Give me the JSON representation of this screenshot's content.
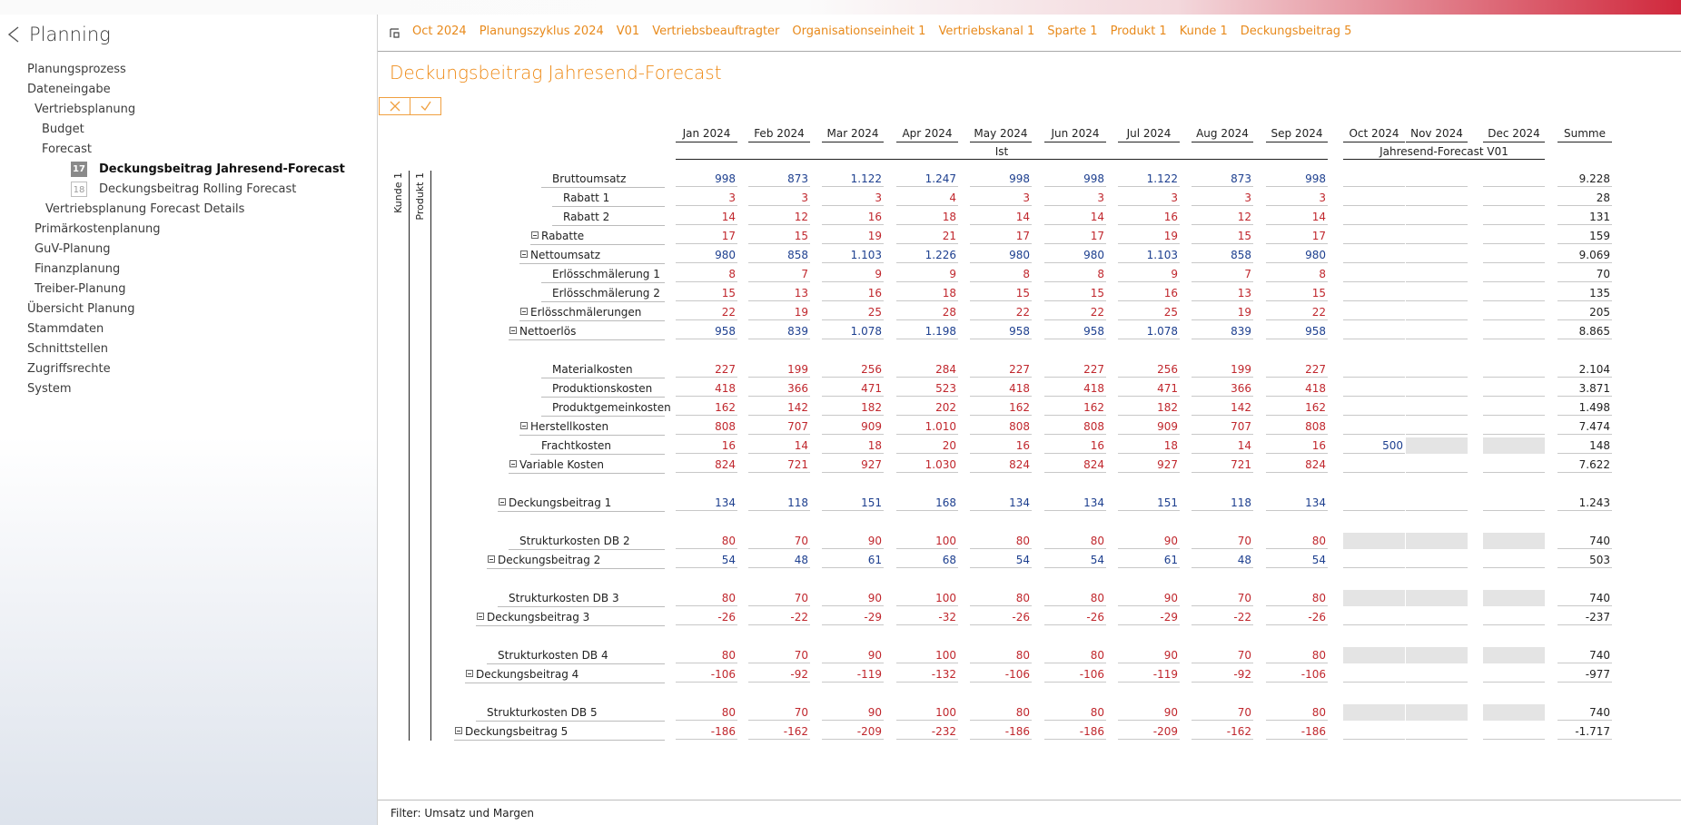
{
  "app": {
    "title": "Planning"
  },
  "nav": [
    {
      "label": "Planungsprozess",
      "indent": 0,
      "badge": null,
      "bold": false
    },
    {
      "label": "Dateneingabe",
      "indent": 0,
      "badge": null,
      "bold": false
    },
    {
      "label": "Vertriebsplanung",
      "indent": 1,
      "badge": null,
      "bold": false
    },
    {
      "label": "Budget",
      "indent": 2,
      "badge": null,
      "bold": false
    },
    {
      "label": "Forecast",
      "indent": 2,
      "badge": null,
      "bold": false
    },
    {
      "label": "Deckungsbeitrag Jahresend-Forecast",
      "indent": 3,
      "badge": "17",
      "bold": true,
      "active": true
    },
    {
      "label": "Deckungsbeitrag Rolling Forecast",
      "indent": 3,
      "badge": "18",
      "bold": false
    },
    {
      "label": "Vertriebsplanung Forecast Details",
      "indent": 2.5,
      "badge": null,
      "bold": false
    },
    {
      "label": "Primärkostenplanung",
      "indent": 1,
      "badge": null,
      "bold": false
    },
    {
      "label": "GuV-Planung",
      "indent": 1,
      "badge": null,
      "bold": false
    },
    {
      "label": "Finanzplanung",
      "indent": 1,
      "badge": null,
      "bold": false
    },
    {
      "label": "Treiber-Planung",
      "indent": 1,
      "badge": null,
      "bold": false
    },
    {
      "label": "Übersicht Planung",
      "indent": 0,
      "badge": null,
      "bold": false
    },
    {
      "label": "Stammdaten",
      "indent": 0,
      "badge": null,
      "bold": false
    },
    {
      "label": "Schnittstellen",
      "indent": 0,
      "badge": null,
      "bold": false
    },
    {
      "label": "Zugriffsrechte",
      "indent": 0,
      "badge": null,
      "bold": false
    },
    {
      "label": "System",
      "indent": 0,
      "badge": null,
      "bold": false
    }
  ],
  "breadcrumbs": [
    "Oct 2024",
    "Planungszyklus 2024",
    "V01",
    "Vertriebsbeauftragter",
    "Organisationseinheit 1",
    "Vertriebskanal 1",
    "Sparte 1",
    "Produkt 1",
    "Kunde 1",
    "Deckungsbeitrag 5"
  ],
  "page_title": "Deckungsbeitrag Jahresend-Forecast",
  "columns": [
    "Jan 2024",
    "Feb 2024",
    "Mar 2024",
    "Apr 2024",
    "May 2024",
    "Jun 2024",
    "Jul 2024",
    "Aug 2024",
    "Sep 2024",
    "Oct 2024",
    "Nov 2024",
    "Dec 2024",
    "Summe"
  ],
  "column_groups": [
    {
      "label": "Ist",
      "span": 9
    },
    {
      "label": "Jahresend-Forecast V01",
      "span": 3
    }
  ],
  "dimensions": {
    "outer": "Kunde 1",
    "inner": "Produkt 1"
  },
  "colors": {
    "accent": "#ee8a16",
    "negative": "#c0272d",
    "positive": "#1d3f8f"
  },
  "rows": [
    {
      "label": "Bruttoumsatz",
      "indent": 9,
      "expander": false,
      "color": "blue",
      "values": [
        "998",
        "873",
        "1.122",
        "1.247",
        "998",
        "998",
        "1.122",
        "873",
        "998"
      ],
      "forecast": [
        "",
        "",
        ""
      ],
      "total": "9.228"
    },
    {
      "label": "Rabatt 1",
      "indent": 10,
      "expander": false,
      "color": "red",
      "values": [
        "3",
        "3",
        "3",
        "4",
        "3",
        "3",
        "3",
        "3",
        "3"
      ],
      "forecast": [
        "",
        "",
        ""
      ],
      "total": "28"
    },
    {
      "label": "Rabatt 2",
      "indent": 10,
      "expander": false,
      "color": "red",
      "values": [
        "14",
        "12",
        "16",
        "18",
        "14",
        "14",
        "16",
        "12",
        "14"
      ],
      "forecast": [
        "",
        "",
        ""
      ],
      "total": "131"
    },
    {
      "label": "Rabatte",
      "indent": 9,
      "expander": true,
      "color": "red",
      "values": [
        "17",
        "15",
        "19",
        "21",
        "17",
        "17",
        "19",
        "15",
        "17"
      ],
      "forecast": [
        "",
        "",
        ""
      ],
      "total": "159"
    },
    {
      "label": "Nettoumsatz",
      "indent": 8,
      "expander": true,
      "color": "blue",
      "values": [
        "980",
        "858",
        "1.103",
        "1.226",
        "980",
        "980",
        "1.103",
        "858",
        "980"
      ],
      "forecast": [
        "",
        "",
        ""
      ],
      "total": "9.069"
    },
    {
      "label": "Erlösschmälerung 1",
      "indent": 9,
      "expander": false,
      "color": "red",
      "values": [
        "8",
        "7",
        "9",
        "9",
        "8",
        "8",
        "9",
        "7",
        "8"
      ],
      "forecast": [
        "",
        "",
        ""
      ],
      "total": "70"
    },
    {
      "label": "Erlösschmälerung 2",
      "indent": 9,
      "expander": false,
      "color": "red",
      "values": [
        "15",
        "13",
        "16",
        "18",
        "15",
        "15",
        "16",
        "13",
        "15"
      ],
      "forecast": [
        "",
        "",
        ""
      ],
      "total": "135"
    },
    {
      "label": "Erlösschmälerungen",
      "indent": 8,
      "expander": true,
      "color": "red",
      "values": [
        "22",
        "19",
        "25",
        "28",
        "22",
        "22",
        "25",
        "19",
        "22"
      ],
      "forecast": [
        "",
        "",
        ""
      ],
      "total": "205"
    },
    {
      "label": "Nettoerlös",
      "indent": 7,
      "expander": true,
      "color": "blue",
      "values": [
        "958",
        "839",
        "1.078",
        "1.198",
        "958",
        "958",
        "1.078",
        "839",
        "958"
      ],
      "forecast": [
        "",
        "",
        ""
      ],
      "total": "8.865"
    },
    {
      "spacer": true
    },
    {
      "label": "Materialkosten",
      "indent": 9,
      "expander": false,
      "color": "red",
      "values": [
        "227",
        "199",
        "256",
        "284",
        "227",
        "227",
        "256",
        "199",
        "227"
      ],
      "forecast": [
        "",
        "",
        ""
      ],
      "total": "2.104"
    },
    {
      "label": "Produktionskosten",
      "indent": 9,
      "expander": false,
      "color": "red",
      "values": [
        "418",
        "366",
        "471",
        "523",
        "418",
        "418",
        "471",
        "366",
        "418"
      ],
      "forecast": [
        "",
        "",
        ""
      ],
      "total": "3.871"
    },
    {
      "label": "Produktgemeinkosten",
      "indent": 9,
      "expander": false,
      "color": "red",
      "values": [
        "162",
        "142",
        "182",
        "202",
        "162",
        "162",
        "182",
        "142",
        "162"
      ],
      "forecast": [
        "",
        "",
        ""
      ],
      "total": "1.498"
    },
    {
      "label": "Herstellkosten",
      "indent": 8,
      "expander": true,
      "color": "red",
      "values": [
        "808",
        "707",
        "909",
        "1.010",
        "808",
        "808",
        "909",
        "707",
        "808"
      ],
      "forecast": [
        "",
        "",
        ""
      ],
      "total": "7.474"
    },
    {
      "label": "Frachtkosten",
      "indent": 8,
      "expander": false,
      "color": "red",
      "values": [
        "16",
        "14",
        "18",
        "20",
        "16",
        "16",
        "18",
        "14",
        "16"
      ],
      "forecast": [
        "500",
        "grey",
        "grey"
      ],
      "total": "148"
    },
    {
      "label": "Variable Kosten",
      "indent": 7,
      "expander": true,
      "color": "red",
      "values": [
        "824",
        "721",
        "927",
        "1.030",
        "824",
        "824",
        "927",
        "721",
        "824"
      ],
      "forecast": [
        "",
        "",
        ""
      ],
      "total": "7.622"
    },
    {
      "spacer": true
    },
    {
      "label": "Deckungsbeitrag 1",
      "indent": 6,
      "expander": true,
      "color": "blue",
      "values": [
        "134",
        "118",
        "151",
        "168",
        "134",
        "134",
        "151",
        "118",
        "134"
      ],
      "forecast": [
        "",
        "",
        ""
      ],
      "total": "1.243"
    },
    {
      "spacer": true
    },
    {
      "label": "Strukturkosten DB 2",
      "indent": 6,
      "expander": false,
      "color": "red",
      "values": [
        "80",
        "70",
        "90",
        "100",
        "80",
        "80",
        "90",
        "70",
        "80"
      ],
      "forecast": [
        "grey",
        "grey",
        "grey"
      ],
      "total": "740"
    },
    {
      "label": "Deckungsbeitrag 2",
      "indent": 5,
      "expander": true,
      "color": "blue",
      "values": [
        "54",
        "48",
        "61",
        "68",
        "54",
        "54",
        "61",
        "48",
        "54"
      ],
      "forecast": [
        "",
        "",
        ""
      ],
      "total": "503"
    },
    {
      "spacer": true
    },
    {
      "label": "Strukturkosten DB 3",
      "indent": 5,
      "expander": false,
      "color": "red",
      "values": [
        "80",
        "70",
        "90",
        "100",
        "80",
        "80",
        "90",
        "70",
        "80"
      ],
      "forecast": [
        "grey",
        "grey",
        "grey"
      ],
      "total": "740"
    },
    {
      "label": "Deckungsbeitrag 3",
      "indent": 4,
      "expander": true,
      "color": "red",
      "values": [
        "-26",
        "-22",
        "-29",
        "-32",
        "-26",
        "-26",
        "-29",
        "-22",
        "-26"
      ],
      "forecast": [
        "",
        "",
        ""
      ],
      "total": "-237"
    },
    {
      "spacer": true
    },
    {
      "label": "Strukturkosten DB 4",
      "indent": 4,
      "expander": false,
      "color": "red",
      "values": [
        "80",
        "70",
        "90",
        "100",
        "80",
        "80",
        "90",
        "70",
        "80"
      ],
      "forecast": [
        "grey",
        "grey",
        "grey"
      ],
      "total": "740"
    },
    {
      "label": "Deckungsbeitrag 4",
      "indent": 3,
      "expander": true,
      "color": "red",
      "values": [
        "-106",
        "-92",
        "-119",
        "-132",
        "-106",
        "-106",
        "-119",
        "-92",
        "-106"
      ],
      "forecast": [
        "",
        "",
        ""
      ],
      "total": "-977"
    },
    {
      "spacer": true
    },
    {
      "label": "Strukturkosten DB 5",
      "indent": 3,
      "expander": false,
      "color": "red",
      "values": [
        "80",
        "70",
        "90",
        "100",
        "80",
        "80",
        "90",
        "70",
        "80"
      ],
      "forecast": [
        "grey",
        "grey",
        "grey"
      ],
      "total": "740"
    },
    {
      "label": "Deckungsbeitrag 5",
      "indent": 2,
      "expander": true,
      "color": "red",
      "values": [
        "-186",
        "-162",
        "-209",
        "-232",
        "-186",
        "-186",
        "-209",
        "-162",
        "-186"
      ],
      "forecast": [
        "",
        "",
        ""
      ],
      "total": "-1.717"
    }
  ],
  "footer": "Filter: Umsatz und Margen"
}
